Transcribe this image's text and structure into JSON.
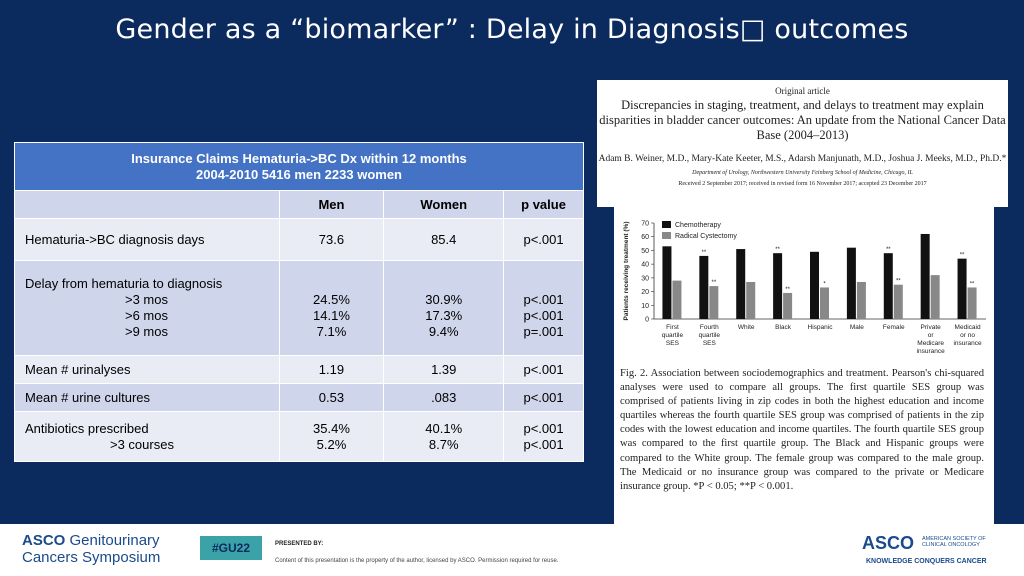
{
  "slide": {
    "title": "Gender as a “biomarker” : Delay in Diagnosis□ outcomes"
  },
  "table": {
    "header_line1": "Insurance Claims Hematuria->BC Dx within 12 months",
    "header_line2": "2004-2010  5416 men  2233 women",
    "columns": [
      "",
      "Men",
      "Women",
      "p value"
    ],
    "rows": [
      {
        "label": "Hematuria->BC diagnosis days",
        "men": "73.6",
        "women": "85.4",
        "p": "p<.001"
      },
      {
        "label": "Delay from hematuria to diagnosis",
        "sub": [
          ">3 mos",
          ">6 mos",
          ">9 mos"
        ],
        "men": [
          "24.5%",
          "14.1%",
          "7.1%"
        ],
        "women": [
          "30.9%",
          "17.3%",
          "9.4%"
        ],
        "p": [
          "p<.001",
          "p<.001",
          "p=.001"
        ]
      },
      {
        "label": "Mean # urinalyses",
        "men": "1.19",
        "women": "1.39",
        "p": "p<.001"
      },
      {
        "label": "Mean # urine cultures",
        "men": "0.53",
        "women": ".083",
        "p": "p<.001"
      },
      {
        "label": "Antibiotics prescribed",
        "sub": [
          ">3 courses"
        ],
        "men": [
          "35.4%",
          "5.2%"
        ],
        "women": [
          "40.1%",
          "8.7%"
        ],
        "p": [
          "p<.001",
          "p<.001"
        ]
      }
    ]
  },
  "article": {
    "kicker": "Original article",
    "title": "Discrepancies in staging, treatment, and delays to treatment may explain disparities in bladder cancer outcomes: An update from the National Cancer Data Base (2004–2013)",
    "authors": "Adam B. Weiner, M.D., Mary-Kate Keeter, M.S., Adarsh Manjunath, M.D., Joshua J. Meeks, M.D., Ph.D.*",
    "department": "Department of Urology, Northwestern University Feinberg School of Medicine, Chicago, IL",
    "received": "Received 2 September 2017; received in revised form 16 November 2017; accepted 23 December 2017"
  },
  "chart_data": {
    "type": "bar",
    "ylabel": "Patients receiving treatment (%)",
    "ylim": [
      0,
      70
    ],
    "yticks": [
      0,
      10,
      20,
      30,
      40,
      50,
      60,
      70
    ],
    "categories": [
      "First quartile SES",
      "Fourth quartile SES",
      "White",
      "Black",
      "Hispanic",
      "Male",
      "Female",
      "Private or Medicare insurance",
      "Medicaid or no insurance"
    ],
    "series": [
      {
        "name": "Chemotherapy",
        "color": "#111111",
        "values": [
          53,
          46,
          51,
          48,
          49,
          52,
          48,
          62,
          44
        ]
      },
      {
        "name": "Radical Cystectomy",
        "color": "#888888",
        "values": [
          28,
          24,
          27,
          19,
          23,
          27,
          25,
          32,
          23
        ]
      }
    ],
    "annotations": [
      {
        "category": "Fourth quartile SES",
        "series": "Chemotherapy",
        "text": "**"
      },
      {
        "category": "Fourth quartile SES",
        "series": "Radical Cystectomy",
        "text": "**"
      },
      {
        "category": "Black",
        "series": "Chemotherapy",
        "text": "**"
      },
      {
        "category": "Black",
        "series": "Radical Cystectomy",
        "text": "**"
      },
      {
        "category": "Hispanic",
        "series": "Radical Cystectomy",
        "text": "*"
      },
      {
        "category": "Female",
        "series": "Chemotherapy",
        "text": "**"
      },
      {
        "category": "Female",
        "series": "Radical Cystectomy",
        "text": "**"
      },
      {
        "category": "Medicaid or no insurance",
        "series": "Chemotherapy",
        "text": "**"
      },
      {
        "category": "Medicaid or no insurance",
        "series": "Radical Cystectomy",
        "text": "**"
      }
    ]
  },
  "figure": {
    "caption": "Fig. 2. Association between sociodemographics and treatment. Pearson's chi-squared analyses were used to compare all groups. The first quartile SES group was comprised of patients living in zip codes in both the highest education and income quartiles whereas the fourth quartile SES group was comprised of patients in the zip codes with the lowest education and income quartiles. The fourth quartile SES group was compared to the first quartile group. The Black and Hispanic groups were compared to the White group. The female group was compared to the male group. The Medicaid or no insurance group was compared to the private or Medicare insurance group. *P < 0.05; **P < 0.001."
  },
  "footer": {
    "brand_line1_bold": "ASCO",
    "brand_line1_rest": " Genitourinary",
    "brand_line2": "Cancers Symposium",
    "tag": "#GU22",
    "presented_by": "PRESENTED BY:",
    "content_note": "Content of this presentation is the property of the author, licensed by ASCO. Permission required for reuse.",
    "asco": "ASCO",
    "society_line1": "AMERICAN SOCIETY OF",
    "society_line2": "CLINICAL ONCOLOGY",
    "tagline": "KNOWLEDGE CONQUERS CANCER"
  }
}
